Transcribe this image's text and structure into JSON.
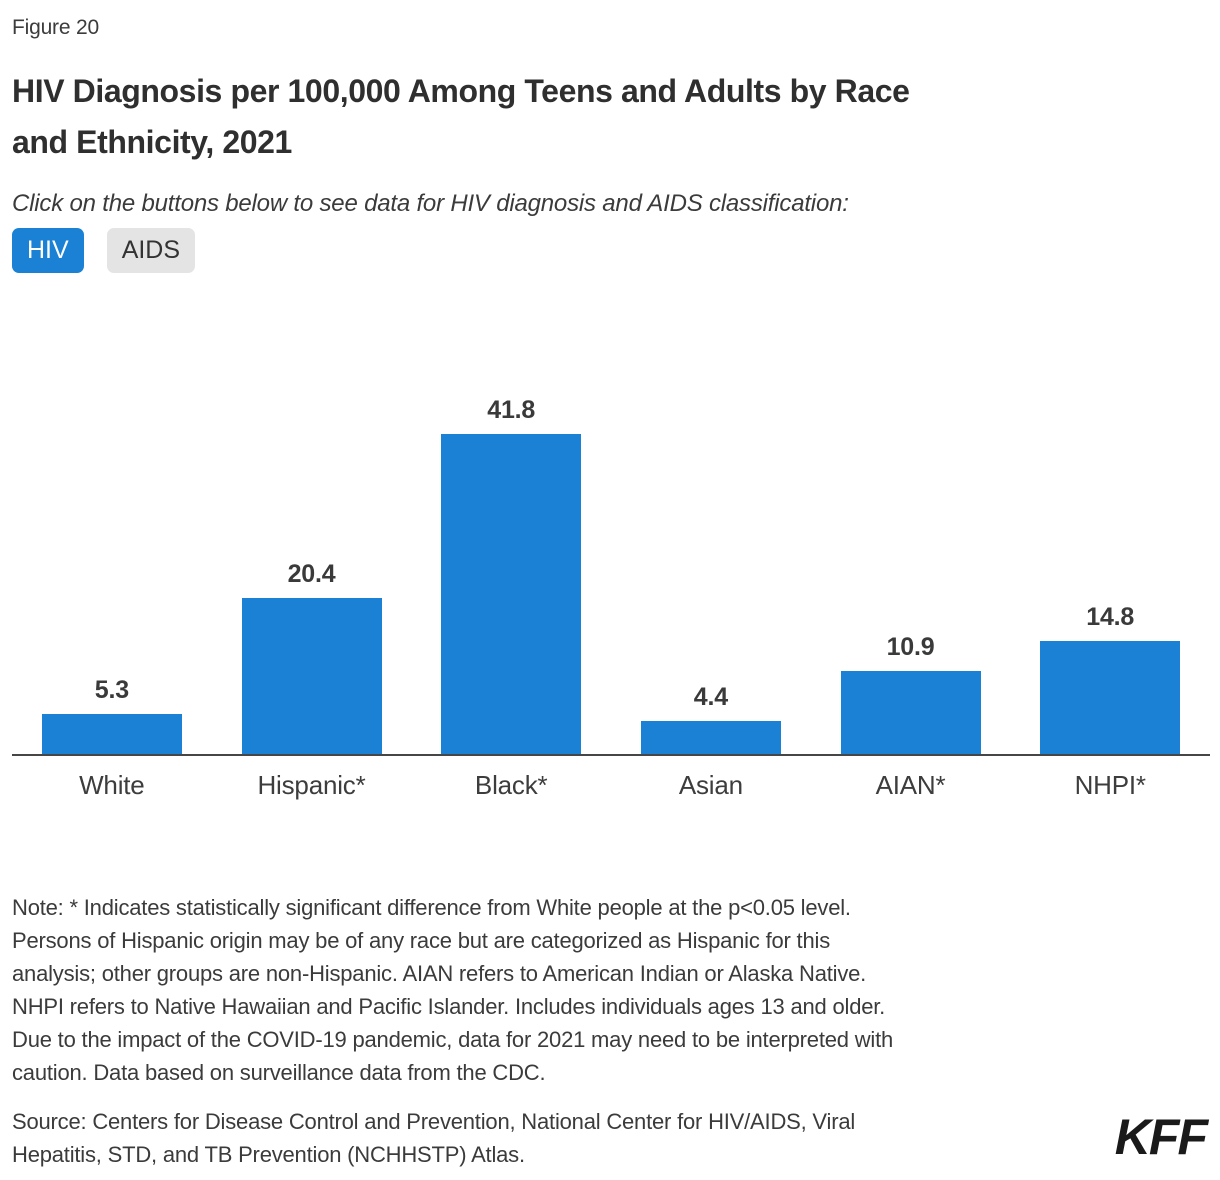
{
  "figure_label": "Figure 20",
  "title": {
    "line1": "HIV Diagnosis per 100,000 Among Teens and Adults by Race",
    "line2": "and Ethnicity, 2021",
    "full": "HIV Diagnosis per 100,000 Among Teens and Adults by Race and Ethnicity, 2021"
  },
  "subtitle": "Click on the buttons below to see data for HIV diagnosis and AIDS classification:",
  "buttons": [
    {
      "label": "HIV",
      "active": true
    },
    {
      "label": "AIDS",
      "active": false
    }
  ],
  "colors": {
    "accent": "#1a81d4",
    "bar": "#1a81d4",
    "inactive_button_bg": "#e4e4e4",
    "axis": "#464646",
    "text": "#3b3b3b",
    "logo": "#1a1a1a"
  },
  "chart_data": {
    "type": "bar",
    "title": "HIV Diagnosis per 100,000 Among Teens and Adults by Race and Ethnicity, 2021",
    "categories": [
      "White",
      "Hispanic*",
      "Black*",
      "Asian",
      "AIAN*",
      "NHPI*"
    ],
    "values": [
      5.3,
      20.4,
      41.8,
      4.4,
      10.9,
      14.8
    ],
    "data_labels": [
      "5.3",
      "20.4",
      "41.8",
      "4.4",
      "10.9",
      "14.8"
    ],
    "xlabel": "",
    "ylabel": "",
    "ylim": [
      0,
      45
    ],
    "grid": false,
    "legend": false,
    "bar_color": "#1a81d4"
  },
  "note_lines": [
    "Note: * Indicates statistically significant difference from White people at the p<0.05 level.",
    "Persons of Hispanic origin may be of any race but are categorized as Hispanic for this",
    "analysis; other groups are non-Hispanic. AIAN refers to American Indian or Alaska Native.",
    "NHPI refers to Native Hawaiian and Pacific Islander. Includes individuals ages 13 and older.",
    "Due to the impact of the COVID-19 pandemic, data for 2021 may need to be interpreted with",
    "caution. Data based on surveillance data from the CDC."
  ],
  "source_lines": [
    "Source: Centers for Disease Control and Prevention, National Center for HIV/AIDS, Viral",
    "Hepatitis, STD, and TB Prevention (NCHHSTP) Atlas."
  ],
  "logo": "KFF"
}
